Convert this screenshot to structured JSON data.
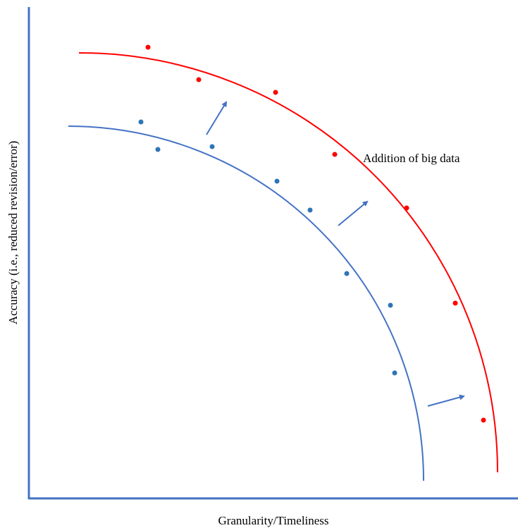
{
  "y_axis_label": "Accuracy (i.e., reduced revision/error)",
  "x_axis_label": "Granularity/Timeliness",
  "annotation": "Addition of big data"
}
